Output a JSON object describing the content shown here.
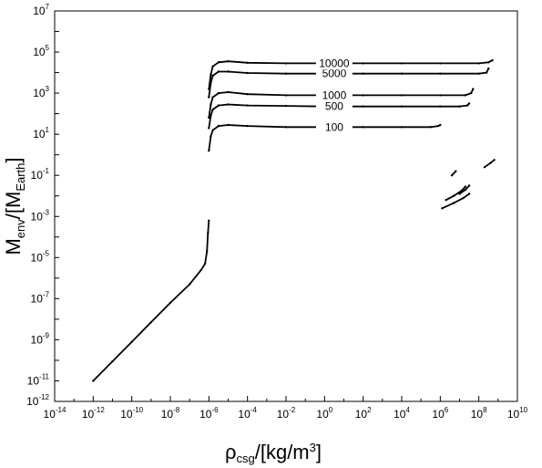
{
  "chart_data": {
    "type": "scatter",
    "title": "",
    "xlabel": {
      "base": "ρ",
      "sub": "csg",
      "unit_pre": "/[kg/m",
      "unit_sup": "3",
      "unit_post": "]"
    },
    "ylabel": {
      "base": "M",
      "sub": "env",
      "unit_pre": "/[M",
      "unit_sub": "Earth",
      "unit_post": "]"
    },
    "xscale": "log",
    "yscale": "log",
    "xlim_exp": [
      -14,
      10
    ],
    "ylim_exp": [
      -12,
      7
    ],
    "x_ticks": [
      {
        "base": "10",
        "exp": "-14",
        "v": -14
      },
      {
        "base": "10",
        "exp": "-12",
        "v": -12
      },
      {
        "base": "10",
        "exp": "-10",
        "v": -10
      },
      {
        "base": "10",
        "exp": "-8",
        "v": -8
      },
      {
        "base": "10",
        "exp": "-6",
        "v": -6
      },
      {
        "base": "10",
        "exp": "-4",
        "v": -4
      },
      {
        "base": "10",
        "exp": "-2",
        "v": -2
      },
      {
        "base": "10",
        "exp": "0",
        "v": 0
      },
      {
        "base": "10",
        "exp": "2",
        "v": 2
      },
      {
        "base": "10",
        "exp": "4",
        "v": 4
      },
      {
        "base": "10",
        "exp": "6",
        "v": 6
      },
      {
        "base": "10",
        "exp": "8",
        "v": 8
      },
      {
        "base": "10",
        "exp": "10",
        "v": 10
      }
    ],
    "y_ticks": [
      {
        "base": "10",
        "exp": "-12",
        "v": -12
      },
      {
        "base": "10",
        "exp": "-11",
        "v": -11
      },
      {
        "base": "10",
        "exp": "-9",
        "v": -9
      },
      {
        "base": "10",
        "exp": "-7",
        "v": -7
      },
      {
        "base": "10",
        "exp": "-5",
        "v": -5
      },
      {
        "base": "10",
        "exp": "-3",
        "v": -3
      },
      {
        "base": "10",
        "exp": "-1",
        "v": -1
      },
      {
        "base": "10",
        "exp": "1",
        "v": 1
      },
      {
        "base": "10",
        "exp": "3",
        "v": 3
      },
      {
        "base": "10",
        "exp": "5",
        "v": 5
      },
      {
        "base": "10",
        "exp": "7",
        "v": 7
      }
    ],
    "series": [
      {
        "label": "",
        "log_points": [
          [
            -12.0,
            -11.0
          ],
          [
            -11.0,
            -10.05
          ],
          [
            -10.0,
            -9.1
          ],
          [
            -9.0,
            -8.15
          ],
          [
            -8.0,
            -7.2
          ],
          [
            -7.0,
            -6.3
          ],
          [
            -6.4,
            -5.6
          ],
          [
            -6.2,
            -5.3
          ],
          [
            -6.1,
            -4.7
          ],
          [
            -6.05,
            -3.8
          ],
          [
            -6.0,
            -3.2
          ]
        ]
      },
      {
        "label": "100",
        "log_points": [
          [
            -6.0,
            0.2
          ],
          [
            -5.9,
            0.9
          ],
          [
            -5.8,
            1.2
          ],
          [
            -5.5,
            1.4
          ],
          [
            -5.0,
            1.45
          ],
          [
            -4.0,
            1.4
          ],
          [
            -2.0,
            1.35
          ],
          [
            0.0,
            1.35
          ],
          [
            2.0,
            1.35
          ],
          [
            4.0,
            1.35
          ],
          [
            5.5,
            1.35
          ],
          [
            5.9,
            1.4
          ],
          [
            6.0,
            1.45
          ]
        ]
      },
      {
        "label": "500",
        "log_points": [
          [
            -6.0,
            1.3
          ],
          [
            -5.9,
            1.9
          ],
          [
            -5.8,
            2.2
          ],
          [
            -5.5,
            2.4
          ],
          [
            -5.0,
            2.45
          ],
          [
            -4.0,
            2.4
          ],
          [
            -2.0,
            2.38
          ],
          [
            0.0,
            2.35
          ],
          [
            2.0,
            2.35
          ],
          [
            4.0,
            2.35
          ],
          [
            6.0,
            2.35
          ],
          [
            7.0,
            2.35
          ],
          [
            7.4,
            2.4
          ],
          [
            7.5,
            2.5
          ]
        ]
      },
      {
        "label": "1000",
        "log_points": [
          [
            -6.0,
            1.8
          ],
          [
            -5.9,
            2.45
          ],
          [
            -5.8,
            2.8
          ],
          [
            -5.5,
            3.0
          ],
          [
            -5.0,
            3.05
          ],
          [
            -4.0,
            2.95
          ],
          [
            -2.0,
            2.9
          ],
          [
            0.0,
            2.9
          ],
          [
            2.0,
            2.9
          ],
          [
            4.0,
            2.9
          ],
          [
            6.0,
            2.9
          ],
          [
            7.3,
            2.9
          ],
          [
            7.6,
            3.0
          ],
          [
            7.7,
            3.2
          ]
        ]
      },
      {
        "label": "5000",
        "log_points": [
          [
            -6.0,
            2.8
          ],
          [
            -5.9,
            3.5
          ],
          [
            -5.8,
            3.85
          ],
          [
            -5.5,
            4.05
          ],
          [
            -5.0,
            4.05
          ],
          [
            -4.0,
            3.98
          ],
          [
            -2.0,
            3.95
          ],
          [
            0.0,
            3.95
          ],
          [
            2.0,
            3.95
          ],
          [
            4.0,
            3.95
          ],
          [
            6.0,
            3.95
          ],
          [
            8.0,
            3.95
          ],
          [
            8.4,
            4.0
          ],
          [
            8.5,
            4.2
          ]
        ]
      },
      {
        "label": "10000",
        "log_points": [
          [
            -6.0,
            3.2
          ],
          [
            -5.9,
            3.9
          ],
          [
            -5.8,
            4.3
          ],
          [
            -5.5,
            4.5
          ],
          [
            -5.0,
            4.55
          ],
          [
            -4.0,
            4.48
          ],
          [
            -2.0,
            4.45
          ],
          [
            0.0,
            4.45
          ],
          [
            2.0,
            4.45
          ],
          [
            4.0,
            4.45
          ],
          [
            6.0,
            4.45
          ],
          [
            8.0,
            4.45
          ],
          [
            8.5,
            4.5
          ],
          [
            8.7,
            4.6
          ]
        ]
      },
      {
        "label": "",
        "log_points": [
          [
            6.1,
            -2.6
          ],
          [
            6.7,
            -2.35
          ],
          [
            7.2,
            -2.1
          ],
          [
            7.5,
            -1.9
          ]
        ]
      },
      {
        "label": "",
        "log_points": [
          [
            6.3,
            -2.2
          ],
          [
            6.7,
            -2.0
          ],
          [
            7.1,
            -1.75
          ],
          [
            7.3,
            -1.55
          ]
        ]
      },
      {
        "label": "",
        "log_points": [
          [
            7.0,
            -1.9
          ],
          [
            7.3,
            -1.7
          ],
          [
            7.5,
            -1.5
          ]
        ]
      },
      {
        "label": "",
        "log_points": [
          [
            6.6,
            -1.0
          ],
          [
            6.8,
            -0.8
          ]
        ]
      },
      {
        "label": "",
        "log_points": [
          [
            8.3,
            -0.6
          ],
          [
            8.6,
            -0.4
          ],
          [
            8.8,
            -0.25
          ]
        ]
      }
    ]
  }
}
